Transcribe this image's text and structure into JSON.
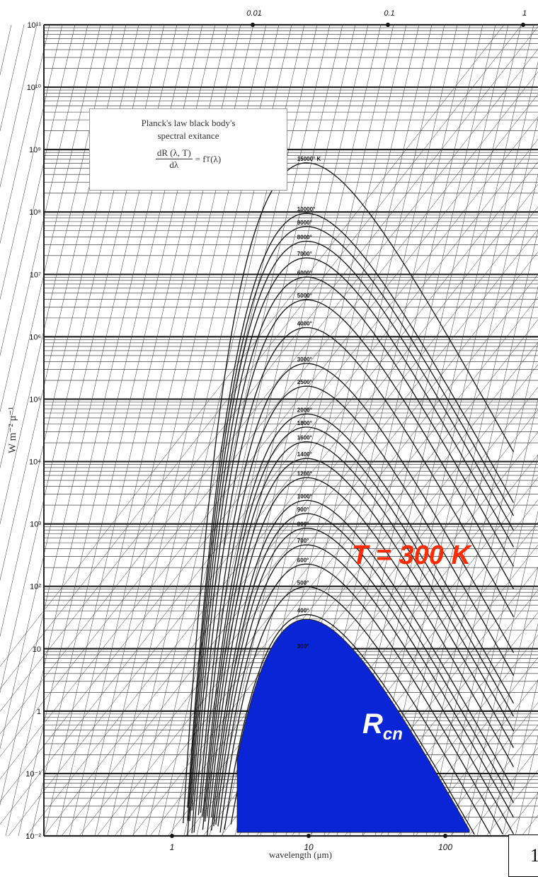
{
  "chart_data": {
    "type": "line",
    "title": "",
    "xlabel": "wavelength (μm)",
    "ylabel": "W m⁻² μ⁻¹",
    "x_scale": "log",
    "y_scale": "log",
    "xlim": [
      0.1,
      300
    ],
    "ylim": [
      0.01,
      100000000000
    ],
    "y_ticks": [
      "10¹¹",
      "10¹⁰",
      "10⁹",
      "10⁸",
      "10⁷",
      "10⁶",
      "10⁵",
      "10⁴",
      "10³",
      "10²",
      "10",
      "1",
      "10⁻¹",
      "10⁻²"
    ],
    "x_ticks": [
      "1",
      "10",
      "100"
    ],
    "top_axis_ticks": [
      "0.01",
      "0.1",
      "1"
    ],
    "series_note": "Planck spectral exitance curves for temperatures listed in temperature_labels",
    "temperature_labels": [
      "15000° K",
      "10000°",
      "9000°",
      "8000°",
      "7000°",
      "6000°",
      "5000°",
      "4000°",
      "3000°",
      "2500°",
      "2000°",
      "1800°",
      "1600°",
      "1400°",
      "1200°",
      "1000°",
      "900°",
      "800°",
      "700°",
      "600°",
      "500°",
      "400°",
      "300°"
    ],
    "temperatures_K": [
      15000,
      10000,
      9000,
      8000,
      7000,
      6000,
      5000,
      4000,
      3000,
      2500,
      2000,
      1800,
      1600,
      1400,
      1200,
      1000,
      900,
      800,
      700,
      600,
      500,
      400,
      300
    ],
    "highlight": {
      "label": "T = 300 K",
      "fill_label": "R",
      "fill_label_sub": "cn",
      "color": "#0a25d6",
      "label_color": "#ff2a00",
      "x_range": [
        3,
        150
      ]
    }
  },
  "infobox": {
    "line1": "Planck's law black body's",
    "line2": "spectral exitance",
    "numerator": "dR (λ, T)",
    "denominator": "dλ",
    "rhs": "= f",
    "rhs_sub": "T",
    "rhs_arg": " (λ)"
  },
  "page_number": "1"
}
